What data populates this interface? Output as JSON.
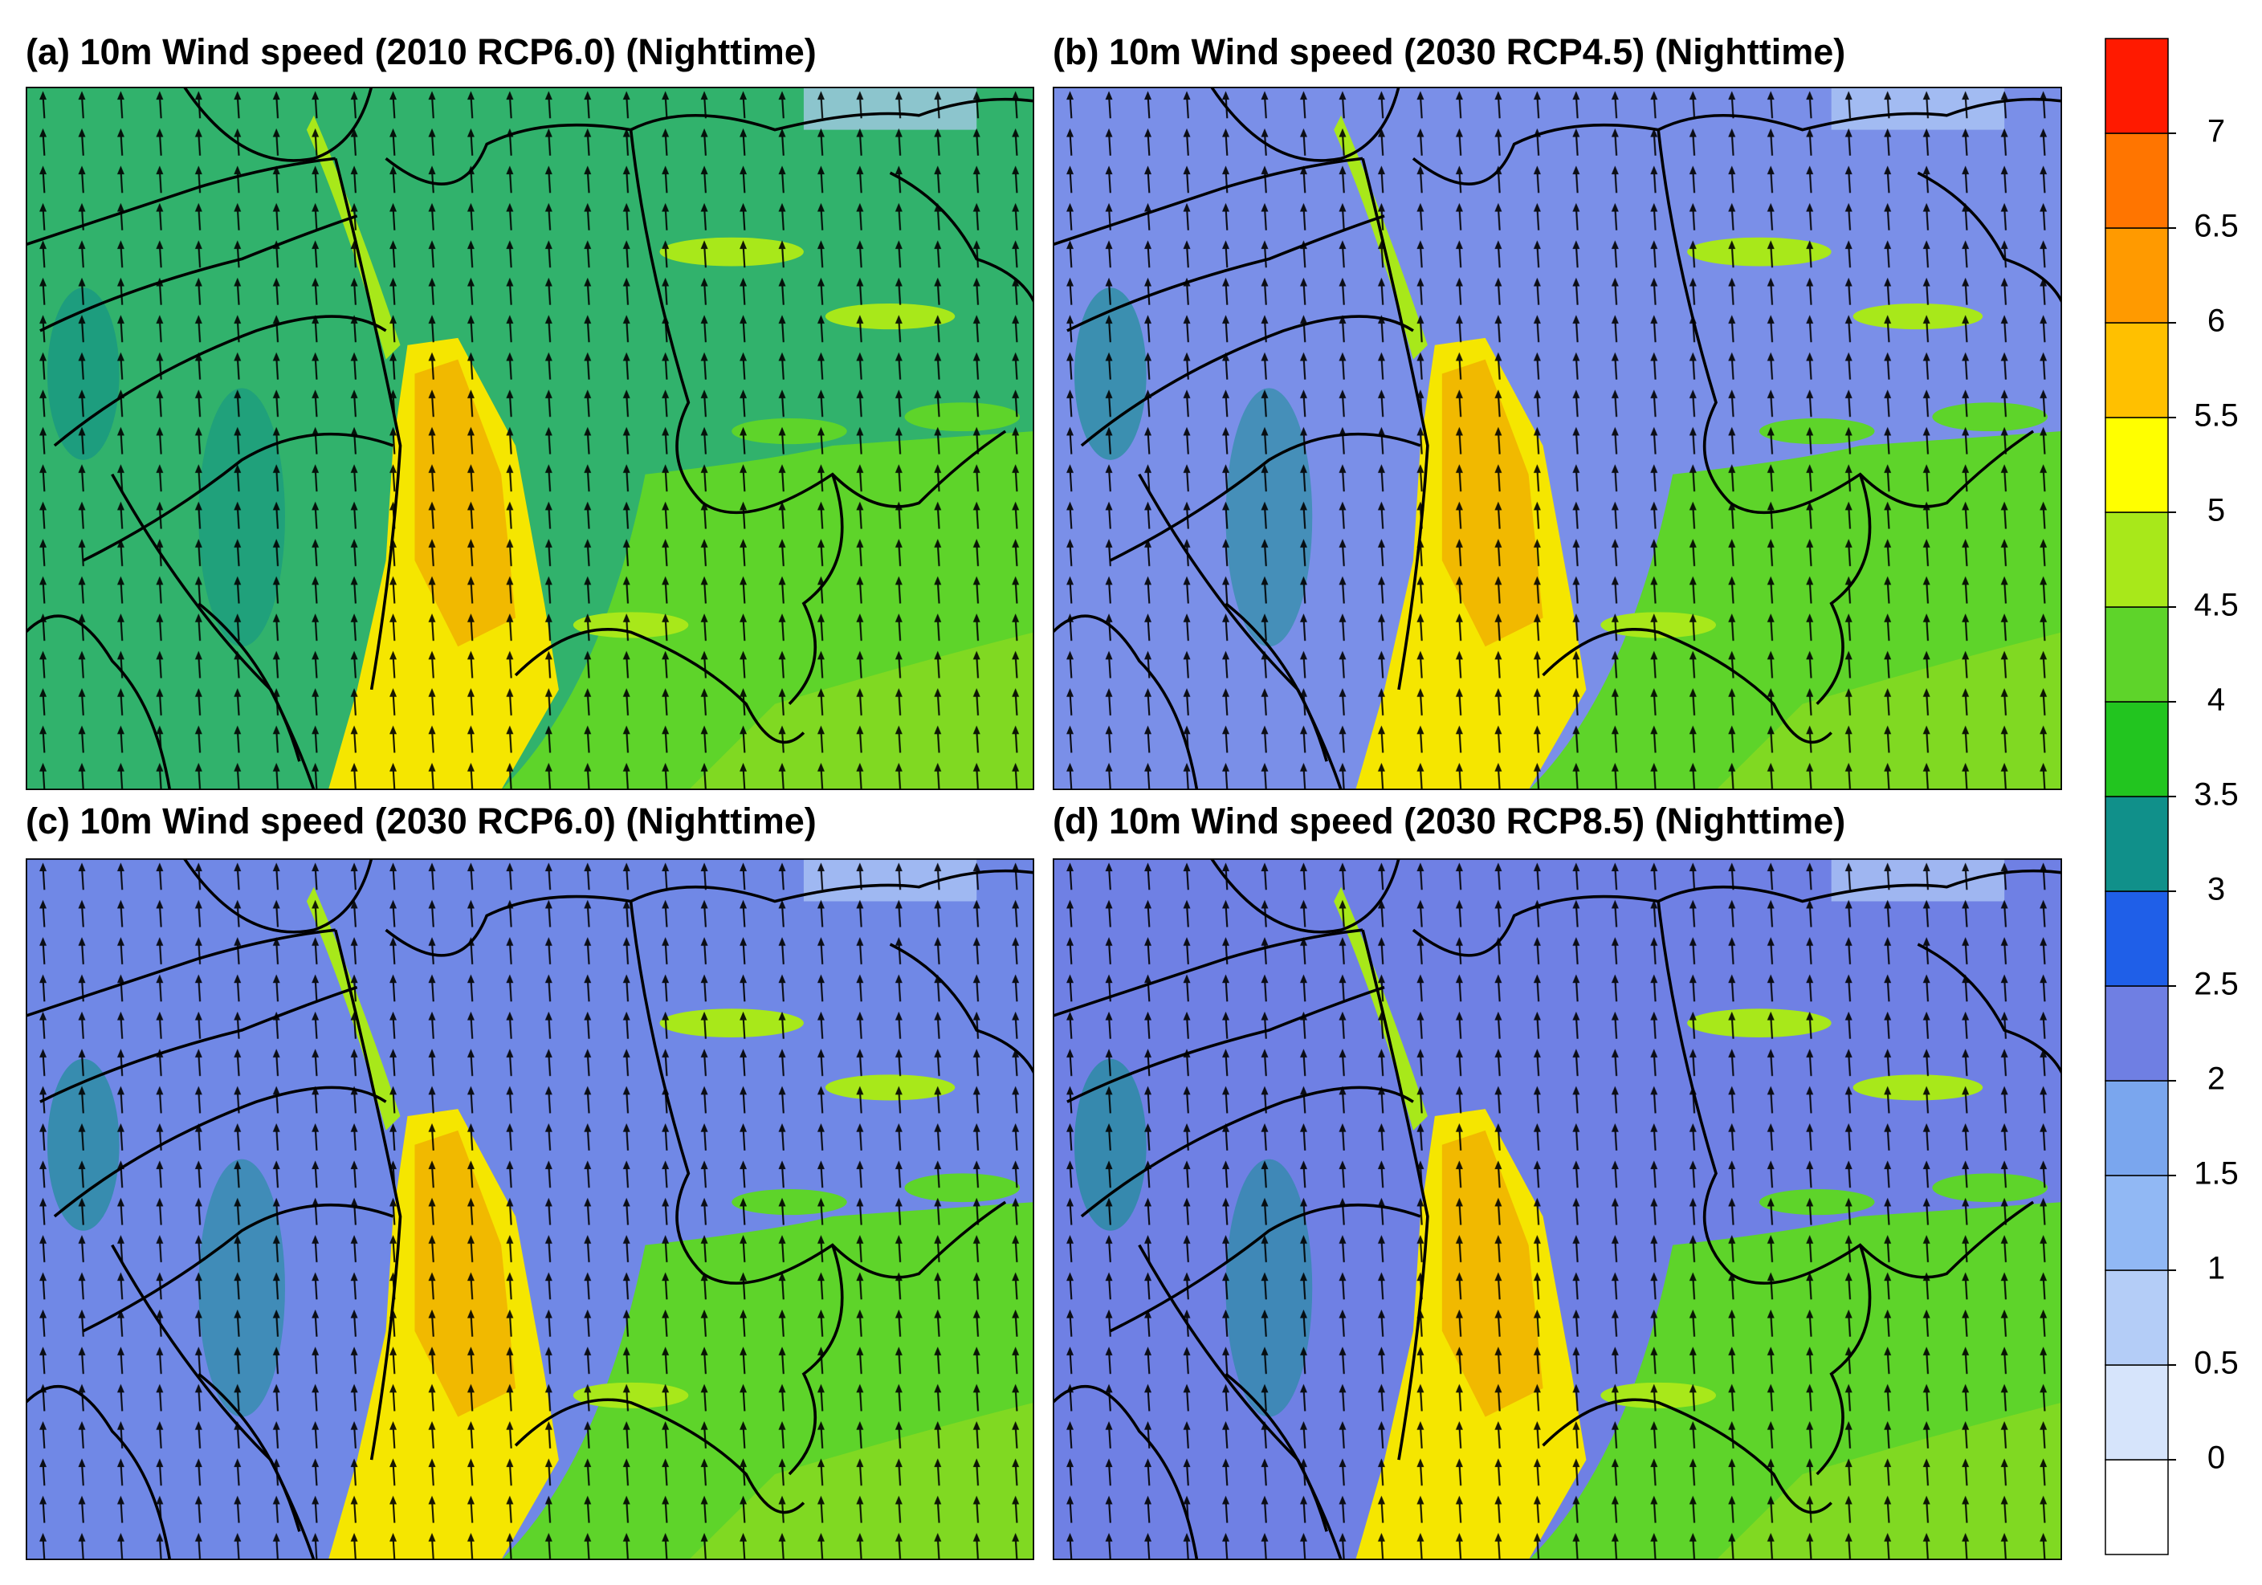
{
  "panels": [
    {
      "title": "(a) 10m Wind speed (2010 RCP6.0) (Nighttime)"
    },
    {
      "title": "(b) 10m Wind speed (2030 RCP4.5) (Nighttime)"
    },
    {
      "title": "(c) 10m Wind speed (2030 RCP6.0) (Nighttime)"
    },
    {
      "title": "(d) 10m Wind speed (2030 RCP8.5) (Nighttime)"
    }
  ],
  "colorbar": {
    "ticks": [
      0,
      0.5,
      1,
      1.5,
      2,
      2.5,
      3,
      3.5,
      4,
      4.5,
      5,
      5.5,
      6,
      6.5,
      7
    ],
    "colors": [
      "#ffffff",
      "#d6e4fb",
      "#b4cdf7",
      "#91b8f4",
      "#7aa6ee",
      "#6f7fe3",
      "#1f5fe8",
      "#10908a",
      "#22c51f",
      "#5ed42a",
      "#a8e81a",
      "#ffff00",
      "#ffc000",
      "#ff9a00",
      "#ff7500",
      "#ff1a00"
    ]
  }
}
